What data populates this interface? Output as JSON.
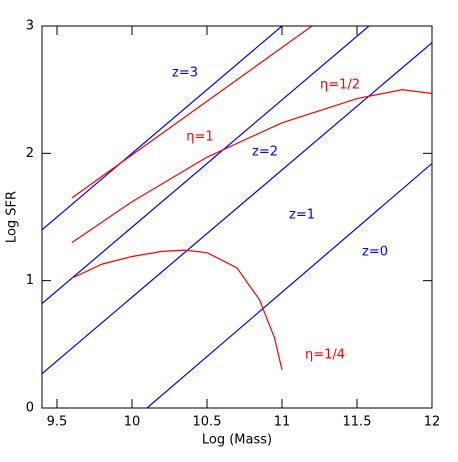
{
  "chart_data": {
    "type": "line",
    "xlabel": "Log (Mass)",
    "ylabel": "Log SFR",
    "xlim": [
      9.4,
      12
    ],
    "ylim": [
      0,
      3
    ],
    "xticks": [
      9.5,
      10,
      10.5,
      11,
      11.5,
      12
    ],
    "yticks": [
      0,
      1,
      2,
      3
    ],
    "series": [
      {
        "name": "z=3",
        "color": "#0000ff",
        "x": [
          9.4,
          11.0
        ],
        "values": [
          1.4,
          3
        ]
      },
      {
        "name": "z=2",
        "color": "#0000ff",
        "x": [
          9.4,
          11.58
        ],
        "values": [
          0.82,
          3
        ]
      },
      {
        "name": "z=1",
        "color": "#0000ff",
        "x": [
          9.4,
          12
        ],
        "values": [
          0.27,
          2.87
        ]
      },
      {
        "name": "z=0",
        "color": "#0000ff",
        "x": [
          10.1,
          12
        ],
        "values": [
          0,
          1.92
        ]
      },
      {
        "name": "η=1",
        "color": "#ff0000",
        "x": [
          9.6,
          11.2
        ],
        "values": [
          1.65,
          3.0
        ]
      },
      {
        "name": "η=1/2",
        "color": "#ff0000",
        "x": [
          9.6,
          10,
          10.5,
          11,
          11.5,
          11.8,
          12
        ],
        "values": [
          1.3,
          1.62,
          1.97,
          2.24,
          2.43,
          2.5,
          2.47
        ]
      },
      {
        "name": "η=1/4",
        "color": "#ff0000",
        "x": [
          9.6,
          9.8,
          10,
          10.2,
          10.35,
          10.5,
          10.7,
          10.85,
          10.95,
          11
        ],
        "values": [
          1.02,
          1.13,
          1.19,
          1.23,
          1.24,
          1.22,
          1.1,
          0.85,
          0.55,
          0.3
        ]
      }
    ]
  }
}
